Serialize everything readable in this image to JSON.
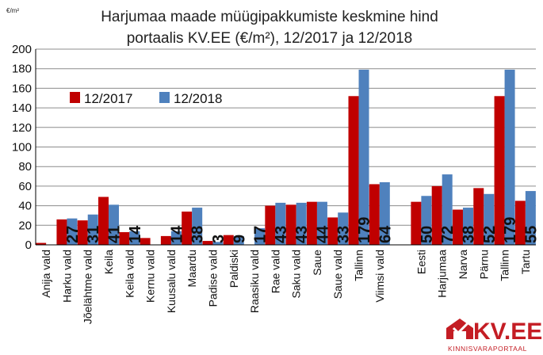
{
  "chart_data": {
    "type": "bar",
    "title_line1": "Harjumaa maade müügipakkumiste keskmine hind",
    "title_line2": "portaalis KV.EE (€/m²), 12/2017 ja 12/2018",
    "unit_label": "€/m²",
    "ylim": [
      0,
      200
    ],
    "yticks": [
      "0",
      "20",
      "40",
      "60",
      "80",
      "100",
      "120",
      "140",
      "160",
      "180",
      "200"
    ],
    "grid": true,
    "legend_position": "upper-left",
    "categories": [
      "Anija vald",
      "Harku vald",
      "Jõelähtme vald",
      "Keila",
      "Keila vald",
      "Kernu vald",
      "Kuusalu vald",
      "Maardu",
      "Padise vald",
      "Paldiski",
      "Raasiku vald",
      "Rae vald",
      "Saku vald",
      "Saue",
      "Saue vald",
      "Tallinn",
      "Viimsi vald",
      "",
      "Eesti",
      "Harjumaa",
      "Narva",
      "Pärnu",
      "Tallinn",
      "Tartu"
    ],
    "series": [
      {
        "name": "12/2017",
        "color": "#c00000",
        "values": [
          2,
          26,
          25,
          49,
          13,
          7,
          9,
          34,
          4,
          10,
          null,
          40,
          41,
          44,
          28,
          152,
          62,
          null,
          44,
          60,
          36,
          58,
          152,
          45
        ]
      },
      {
        "name": "12/2018",
        "color": "#4f81bd",
        "values": [
          null,
          27,
          31,
          41,
          14,
          null,
          14,
          38,
          3,
          9,
          17,
          43,
          43,
          44,
          33,
          179,
          64,
          null,
          50,
          72,
          38,
          52,
          179,
          55
        ]
      }
    ],
    "data_labels": [
      "",
      "27",
      "31",
      "41",
      "14",
      "",
      "14",
      "38",
      "3",
      "9",
      "17",
      "43",
      "43",
      "44",
      "33",
      "179",
      "64",
      "",
      "50",
      "72",
      "38",
      "52",
      "179",
      "55"
    ]
  },
  "logo": {
    "name": "KV.EE",
    "tagline": "KINNISVARAPORTAAL",
    "color": "#c41d24"
  }
}
